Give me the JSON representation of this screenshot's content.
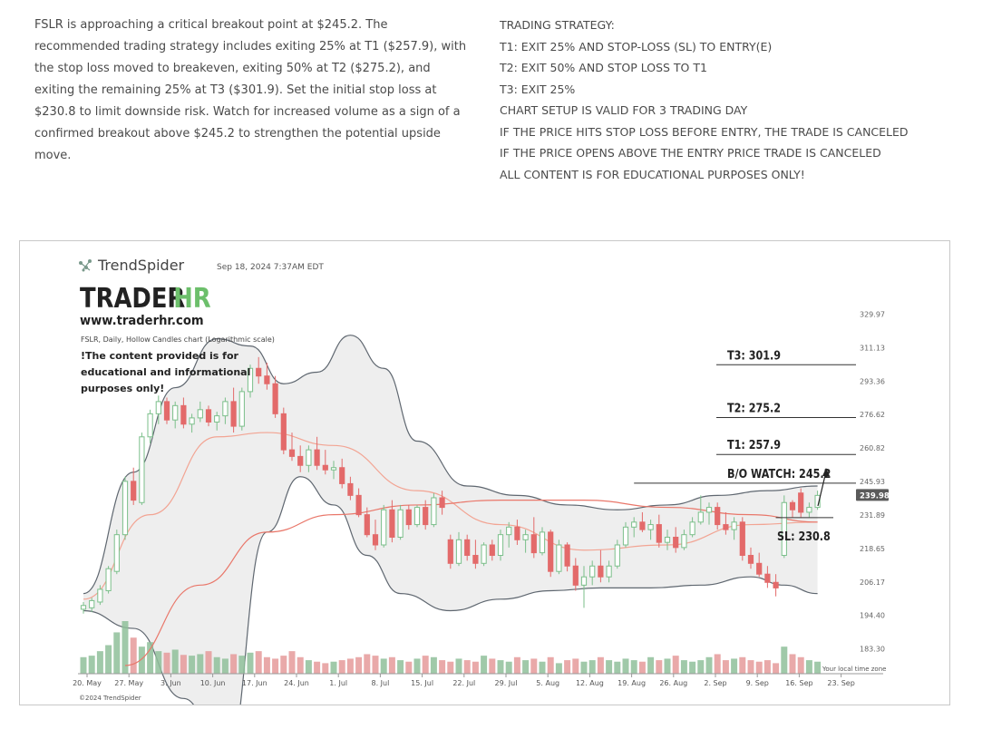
{
  "intro_text": "FSLR is approaching a critical breakout point at $245.2. The recommended trading strategy includes exiting 25% at T1 ($257.9), with the stop loss moved to breakeven, exiting 50% at T2 ($275.2), and exiting the remaining 25% at T3 ($301.9). Set the initial stop loss at $230.8 to limit downside risk. Watch for increased volume as a sign of a confirmed breakout above $245.2 to strengthen the potential upside move.",
  "strategy": {
    "lines": [
      "TRADING STRATEGY:",
      "T1: EXIT 25% AND STOP-LOSS (SL) TO ENTRY(E)",
      "T2: EXIT 50% AND STOP LOSS TO T1",
      "T3: EXIT 25%",
      "CHART SETUP IS VALID FOR 3 TRADING DAY",
      "IF THE PRICE HITS STOP LOSS BEFORE ENTRY, THE TRADE IS CANCELED",
      "IF THE PRICE OPENS ABOVE THE ENTRY PRICE TRADE IS CANCELED",
      "ALL CONTENT IS FOR EDUCATIONAL PURPOSES ONLY!"
    ]
  },
  "chart_header": {
    "brand": "TrendSpider",
    "datetime": "Sep 18, 2024 7:37AM EDT",
    "logo_trader": "TRADER",
    "logo_hr": "HR",
    "website": "www.traderhr.com",
    "subtitle": "FSLR, Daily, Hollow Candles chart (Logarithmic scale)",
    "disclaimer": [
      "!The content provided is for",
      "educational and informational",
      "purposes only!"
    ],
    "footer": "©2024 TrendSpider",
    "timezone": "Your local time zone"
  },
  "colors": {
    "up": "#7bbf8a",
    "down": "#e36a6a",
    "band": "#5f6770",
    "band_fill": "#eeeeee",
    "ma_fast": "#f2a493",
    "ma_slow": "#e9776a",
    "price_tag": "#5a5a5a"
  },
  "chart_data": {
    "type": "candlestick",
    "title": "FSLR, Daily, Hollow Candles chart (Logarithmic scale)",
    "yscale": "log",
    "ylim": [
      178,
      342
    ],
    "y_ticks": [
      183.3,
      194.4,
      206.17,
      218.65,
      231.89,
      245.93,
      260.82,
      276.62,
      293.36,
      311.13,
      329.97
    ],
    "x_ticks": [
      "20. May",
      "27. May",
      "3. Jun",
      "10. Jun",
      "17. Jun",
      "24. Jun",
      "1. Jul",
      "8. Jul",
      "15. Jul",
      "22. Jul",
      "29. Jul",
      "5. Aug",
      "12. Aug",
      "19. Aug",
      "26. Aug",
      "2. Sep",
      "9. Sep",
      "16. Sep",
      "23. Sep"
    ],
    "last_price": 239.98,
    "candles": [
      {
        "o": 196.5,
        "h": 199.0,
        "l": 195.0,
        "c": 197.8
      },
      {
        "o": 197.0,
        "h": 200.5,
        "l": 195.5,
        "c": 199.5
      },
      {
        "o": 199.0,
        "h": 205.0,
        "l": 198.0,
        "c": 203.5
      },
      {
        "o": 203.0,
        "h": 212.0,
        "l": 202.0,
        "c": 211.0
      },
      {
        "o": 210.0,
        "h": 226.0,
        "l": 209.0,
        "c": 224.0
      },
      {
        "o": 224.0,
        "h": 248.0,
        "l": 222.0,
        "c": 246.0
      },
      {
        "o": 246.0,
        "h": 252.0,
        "l": 236.0,
        "c": 238.0
      },
      {
        "o": 237.0,
        "h": 268.0,
        "l": 236.0,
        "c": 266.0
      },
      {
        "o": 266.0,
        "h": 279.0,
        "l": 263.0,
        "c": 277.0
      },
      {
        "o": 277.0,
        "h": 286.0,
        "l": 272.0,
        "c": 283.0
      },
      {
        "o": 283.0,
        "h": 285.0,
        "l": 272.0,
        "c": 274.0
      },
      {
        "o": 274.0,
        "h": 283.0,
        "l": 270.0,
        "c": 281.0
      },
      {
        "o": 281.0,
        "h": 285.0,
        "l": 270.0,
        "c": 272.0
      },
      {
        "o": 272.0,
        "h": 277.0,
        "l": 268.0,
        "c": 275.0
      },
      {
        "o": 275.0,
        "h": 283.0,
        "l": 273.0,
        "c": 279.0
      },
      {
        "o": 279.0,
        "h": 281.0,
        "l": 271.0,
        "c": 273.0
      },
      {
        "o": 273.0,
        "h": 278.0,
        "l": 269.0,
        "c": 276.0
      },
      {
        "o": 276.0,
        "h": 285.0,
        "l": 272.0,
        "c": 283.0
      },
      {
        "o": 283.0,
        "h": 290.0,
        "l": 268.0,
        "c": 271.0
      },
      {
        "o": 271.0,
        "h": 290.0,
        "l": 269.0,
        "c": 288.0
      },
      {
        "o": 288.0,
        "h": 302.0,
        "l": 285.0,
        "c": 300.0
      },
      {
        "o": 300.0,
        "h": 306.0,
        "l": 292.0,
        "c": 296.0
      },
      {
        "o": 296.0,
        "h": 303.0,
        "l": 289.0,
        "c": 292.0
      },
      {
        "o": 292.0,
        "h": 296.0,
        "l": 275.0,
        "c": 277.0
      },
      {
        "o": 277.0,
        "h": 280.0,
        "l": 258.0,
        "c": 260.0
      },
      {
        "o": 260.0,
        "h": 268.0,
        "l": 255.0,
        "c": 257.0
      },
      {
        "o": 257.0,
        "h": 262.0,
        "l": 250.0,
        "c": 253.0
      },
      {
        "o": 253.0,
        "h": 262.0,
        "l": 250.0,
        "c": 260.0
      },
      {
        "o": 260.0,
        "h": 266.0,
        "l": 251.0,
        "c": 253.0
      },
      {
        "o": 253.0,
        "h": 260.0,
        "l": 249.0,
        "c": 251.0
      },
      {
        "o": 251.0,
        "h": 255.0,
        "l": 247.0,
        "c": 252.0
      },
      {
        "o": 252.0,
        "h": 256.0,
        "l": 243.0,
        "c": 245.0
      },
      {
        "o": 245.0,
        "h": 248.0,
        "l": 238.0,
        "c": 240.0
      },
      {
        "o": 240.0,
        "h": 243.0,
        "l": 231.0,
        "c": 232.0
      },
      {
        "o": 232.0,
        "h": 235.0,
        "l": 223.0,
        "c": 224.0
      },
      {
        "o": 224.0,
        "h": 230.0,
        "l": 218.0,
        "c": 220.0
      },
      {
        "o": 220.0,
        "h": 236.0,
        "l": 219.0,
        "c": 234.0
      },
      {
        "o": 234.0,
        "h": 238.0,
        "l": 221.0,
        "c": 223.0
      },
      {
        "o": 223.0,
        "h": 236.0,
        "l": 222.0,
        "c": 234.0
      },
      {
        "o": 234.0,
        "h": 236.0,
        "l": 226.0,
        "c": 228.0
      },
      {
        "o": 228.0,
        "h": 236.0,
        "l": 227.0,
        "c": 235.0
      },
      {
        "o": 235.0,
        "h": 238.0,
        "l": 226.0,
        "c": 228.0
      },
      {
        "o": 228.0,
        "h": 241.0,
        "l": 227.0,
        "c": 239.0
      },
      {
        "o": 239.0,
        "h": 242.0,
        "l": 232.0,
        "c": 235.0
      },
      {
        "o": 222.0,
        "h": 224.0,
        "l": 211.0,
        "c": 213.0
      },
      {
        "o": 213.0,
        "h": 225.0,
        "l": 212.0,
        "c": 222.0
      },
      {
        "o": 222.0,
        "h": 224.0,
        "l": 214.0,
        "c": 216.0
      },
      {
        "o": 216.0,
        "h": 222.0,
        "l": 211.0,
        "c": 213.0
      },
      {
        "o": 213.0,
        "h": 221.0,
        "l": 212.0,
        "c": 220.0
      },
      {
        "o": 220.0,
        "h": 222.0,
        "l": 214.0,
        "c": 216.0
      },
      {
        "o": 216.0,
        "h": 226.0,
        "l": 214.0,
        "c": 224.0
      },
      {
        "o": 224.0,
        "h": 229.0,
        "l": 219.0,
        "c": 227.0
      },
      {
        "o": 227.0,
        "h": 230.0,
        "l": 220.0,
        "c": 222.0
      },
      {
        "o": 222.0,
        "h": 226.0,
        "l": 217.0,
        "c": 224.0
      },
      {
        "o": 224.0,
        "h": 231.0,
        "l": 215.0,
        "c": 217.0
      },
      {
        "o": 217.0,
        "h": 227.0,
        "l": 216.0,
        "c": 225.0
      },
      {
        "o": 225.0,
        "h": 226.0,
        "l": 208.0,
        "c": 210.0
      },
      {
        "o": 210.0,
        "h": 222.0,
        "l": 209.0,
        "c": 220.0
      },
      {
        "o": 220.0,
        "h": 221.0,
        "l": 210.0,
        "c": 212.0
      },
      {
        "o": 212.0,
        "h": 215.0,
        "l": 203.0,
        "c": 205.0
      },
      {
        "o": 205.0,
        "h": 212.0,
        "l": 197.0,
        "c": 208.0
      },
      {
        "o": 208.0,
        "h": 214.0,
        "l": 205.0,
        "c": 212.0
      },
      {
        "o": 212.0,
        "h": 218.0,
        "l": 206.0,
        "c": 208.0
      },
      {
        "o": 208.0,
        "h": 214.0,
        "l": 206.0,
        "c": 212.0
      },
      {
        "o": 212.0,
        "h": 222.0,
        "l": 211.0,
        "c": 220.0
      },
      {
        "o": 220.0,
        "h": 229.0,
        "l": 219.0,
        "c": 227.0
      },
      {
        "o": 227.0,
        "h": 231.0,
        "l": 223.0,
        "c": 229.0
      },
      {
        "o": 229.0,
        "h": 233.0,
        "l": 225.0,
        "c": 226.0
      },
      {
        "o": 226.0,
        "h": 230.0,
        "l": 222.0,
        "c": 228.0
      },
      {
        "o": 228.0,
        "h": 232.0,
        "l": 219.0,
        "c": 221.0
      },
      {
        "o": 221.0,
        "h": 226.0,
        "l": 218.0,
        "c": 223.0
      },
      {
        "o": 223.0,
        "h": 227.0,
        "l": 217.0,
        "c": 219.0
      },
      {
        "o": 219.0,
        "h": 226.0,
        "l": 218.0,
        "c": 224.0
      },
      {
        "o": 224.0,
        "h": 231.0,
        "l": 223.0,
        "c": 229.0
      },
      {
        "o": 229.0,
        "h": 240.0,
        "l": 228.0,
        "c": 233.0
      },
      {
        "o": 233.0,
        "h": 237.0,
        "l": 228.0,
        "c": 235.0
      },
      {
        "o": 235.0,
        "h": 237.0,
        "l": 226.0,
        "c": 228.0
      },
      {
        "o": 228.0,
        "h": 233.0,
        "l": 224.0,
        "c": 226.0
      },
      {
        "o": 226.0,
        "h": 231.0,
        "l": 222.0,
        "c": 229.0
      },
      {
        "o": 229.0,
        "h": 231.0,
        "l": 214.0,
        "c": 216.0
      },
      {
        "o": 216.0,
        "h": 219.0,
        "l": 211.0,
        "c": 213.0
      },
      {
        "o": 213.0,
        "h": 217.0,
        "l": 208.0,
        "c": 209.0
      },
      {
        "o": 209.0,
        "h": 212.0,
        "l": 204.0,
        "c": 206.0
      },
      {
        "o": 206.0,
        "h": 209.0,
        "l": 201.0,
        "c": 204.0
      },
      {
        "o": 216.0,
        "h": 240.0,
        "l": 215.0,
        "c": 237.0
      },
      {
        "o": 237.0,
        "h": 238.0,
        "l": 231.0,
        "c": 234.0
      },
      {
        "o": 241.0,
        "h": 243.0,
        "l": 231.0,
        "c": 233.0
      },
      {
        "o": 233.0,
        "h": 237.0,
        "l": 231.0,
        "c": 235.0
      },
      {
        "o": 235.0,
        "h": 242.0,
        "l": 234.0,
        "c": 240.0
      }
    ],
    "volume": [
      22,
      24,
      30,
      38,
      55,
      70,
      48,
      36,
      42,
      30,
      28,
      32,
      25,
      24,
      26,
      30,
      22,
      20,
      26,
      24,
      28,
      30,
      22,
      20,
      24,
      30,
      22,
      18,
      16,
      14,
      16,
      18,
      20,
      22,
      26,
      24,
      20,
      22,
      18,
      16,
      20,
      24,
      22,
      18,
      16,
      20,
      18,
      16,
      24,
      20,
      18,
      16,
      22,
      18,
      20,
      16,
      22,
      14,
      18,
      20,
      16,
      18,
      22,
      18,
      16,
      20,
      18,
      16,
      22,
      18,
      20,
      24,
      18,
      16,
      18,
      22,
      26,
      18,
      20,
      22,
      18,
      16,
      18,
      14,
      36,
      26,
      22,
      18,
      16
    ],
    "ma_fast": [
      [
        0,
        200
      ],
      [
        8,
        232
      ],
      [
        16,
        266
      ],
      [
        22,
        268
      ],
      [
        30,
        262
      ],
      [
        40,
        242
      ],
      [
        50,
        228
      ],
      [
        60,
        218
      ],
      [
        70,
        220
      ],
      [
        80,
        228
      ],
      [
        88,
        229
      ]
    ],
    "ma_slow": [
      [
        5,
        178
      ],
      [
        14,
        205
      ],
      [
        22,
        225
      ],
      [
        30,
        232
      ],
      [
        40,
        236
      ],
      [
        50,
        238
      ],
      [
        60,
        238
      ],
      [
        70,
        235
      ],
      [
        80,
        232
      ],
      [
        88,
        229
      ]
    ],
    "band_upper": [
      [
        0,
        202
      ],
      [
        6,
        250
      ],
      [
        11,
        290
      ],
      [
        16,
        316
      ],
      [
        20,
        312
      ],
      [
        24,
        292
      ],
      [
        28,
        298
      ],
      [
        32,
        318
      ],
      [
        36,
        300
      ],
      [
        40,
        264
      ],
      [
        46,
        244
      ],
      [
        52,
        240
      ],
      [
        58,
        236
      ],
      [
        64,
        234
      ],
      [
        70,
        236
      ],
      [
        76,
        240
      ],
      [
        82,
        242
      ],
      [
        88,
        244
      ]
    ],
    "band_lower": [
      [
        0,
        196
      ],
      [
        6,
        190
      ],
      [
        12,
        168
      ],
      [
        17,
        150
      ],
      [
        22,
        225
      ],
      [
        26,
        248
      ],
      [
        30,
        236
      ],
      [
        34,
        216
      ],
      [
        38,
        202
      ],
      [
        44,
        196
      ],
      [
        50,
        200
      ],
      [
        56,
        203
      ],
      [
        62,
        204
      ],
      [
        68,
        204
      ],
      [
        74,
        205
      ],
      [
        80,
        208
      ],
      [
        84,
        205
      ],
      [
        88,
        202
      ]
    ],
    "levels": [
      {
        "label": "T3: 301.9",
        "value": 301.9
      },
      {
        "label": "T2: 275.2",
        "value": 275.2
      },
      {
        "label": "T1: 257.9",
        "value": 257.9
      },
      {
        "label": "B/O WATCH: 245.2",
        "value": 245.2
      },
      {
        "label": "SL: 230.8",
        "value": 230.8
      }
    ]
  }
}
